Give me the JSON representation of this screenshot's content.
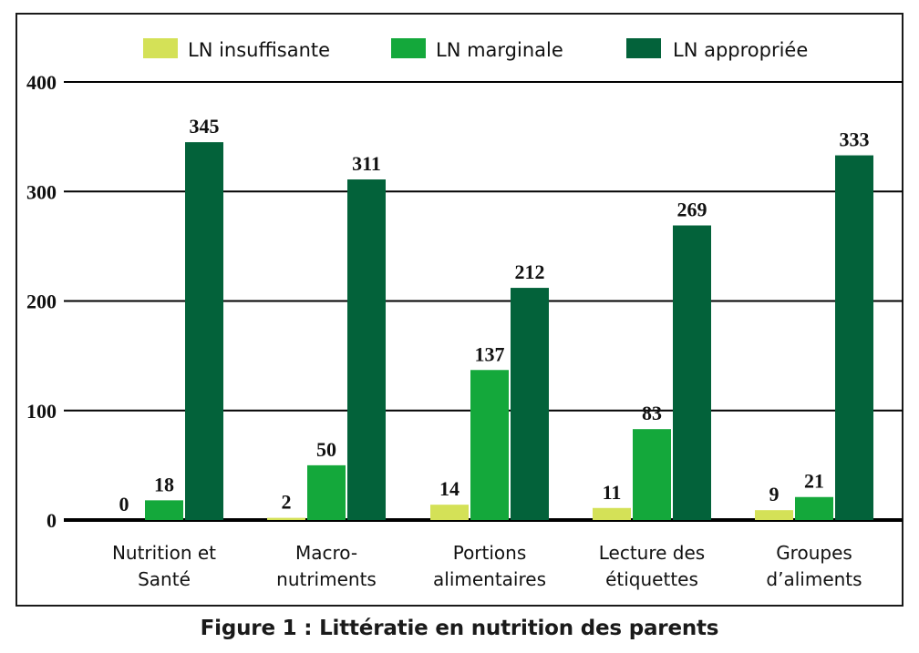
{
  "caption": "Figure 1 : Littératie en nutrition des parents",
  "chart_data": {
    "type": "bar",
    "title": "",
    "xlabel": "",
    "ylabel": "",
    "ylim": [
      0,
      400
    ],
    "yticks": [
      0,
      100,
      200,
      300,
      400
    ],
    "grid": true,
    "legend_position": "top",
    "categories": [
      [
        "Nutrition et",
        "Santé"
      ],
      [
        "Macro-",
        "nutriments"
      ],
      [
        "Portions",
        "alimentaires"
      ],
      [
        "Lecture des",
        "étiquettes"
      ],
      [
        "Groupes",
        "d’aliments"
      ]
    ],
    "series": [
      {
        "name": "LN insuffisante",
        "color": "#d4e157",
        "values": [
          0,
          2,
          14,
          11,
          9
        ]
      },
      {
        "name": "LN marginale",
        "color": "#14a83b",
        "values": [
          18,
          50,
          137,
          83,
          21
        ]
      },
      {
        "name": "LN appropriée",
        "color": "#03623a",
        "values": [
          345,
          311,
          212,
          269,
          333
        ]
      }
    ]
  }
}
